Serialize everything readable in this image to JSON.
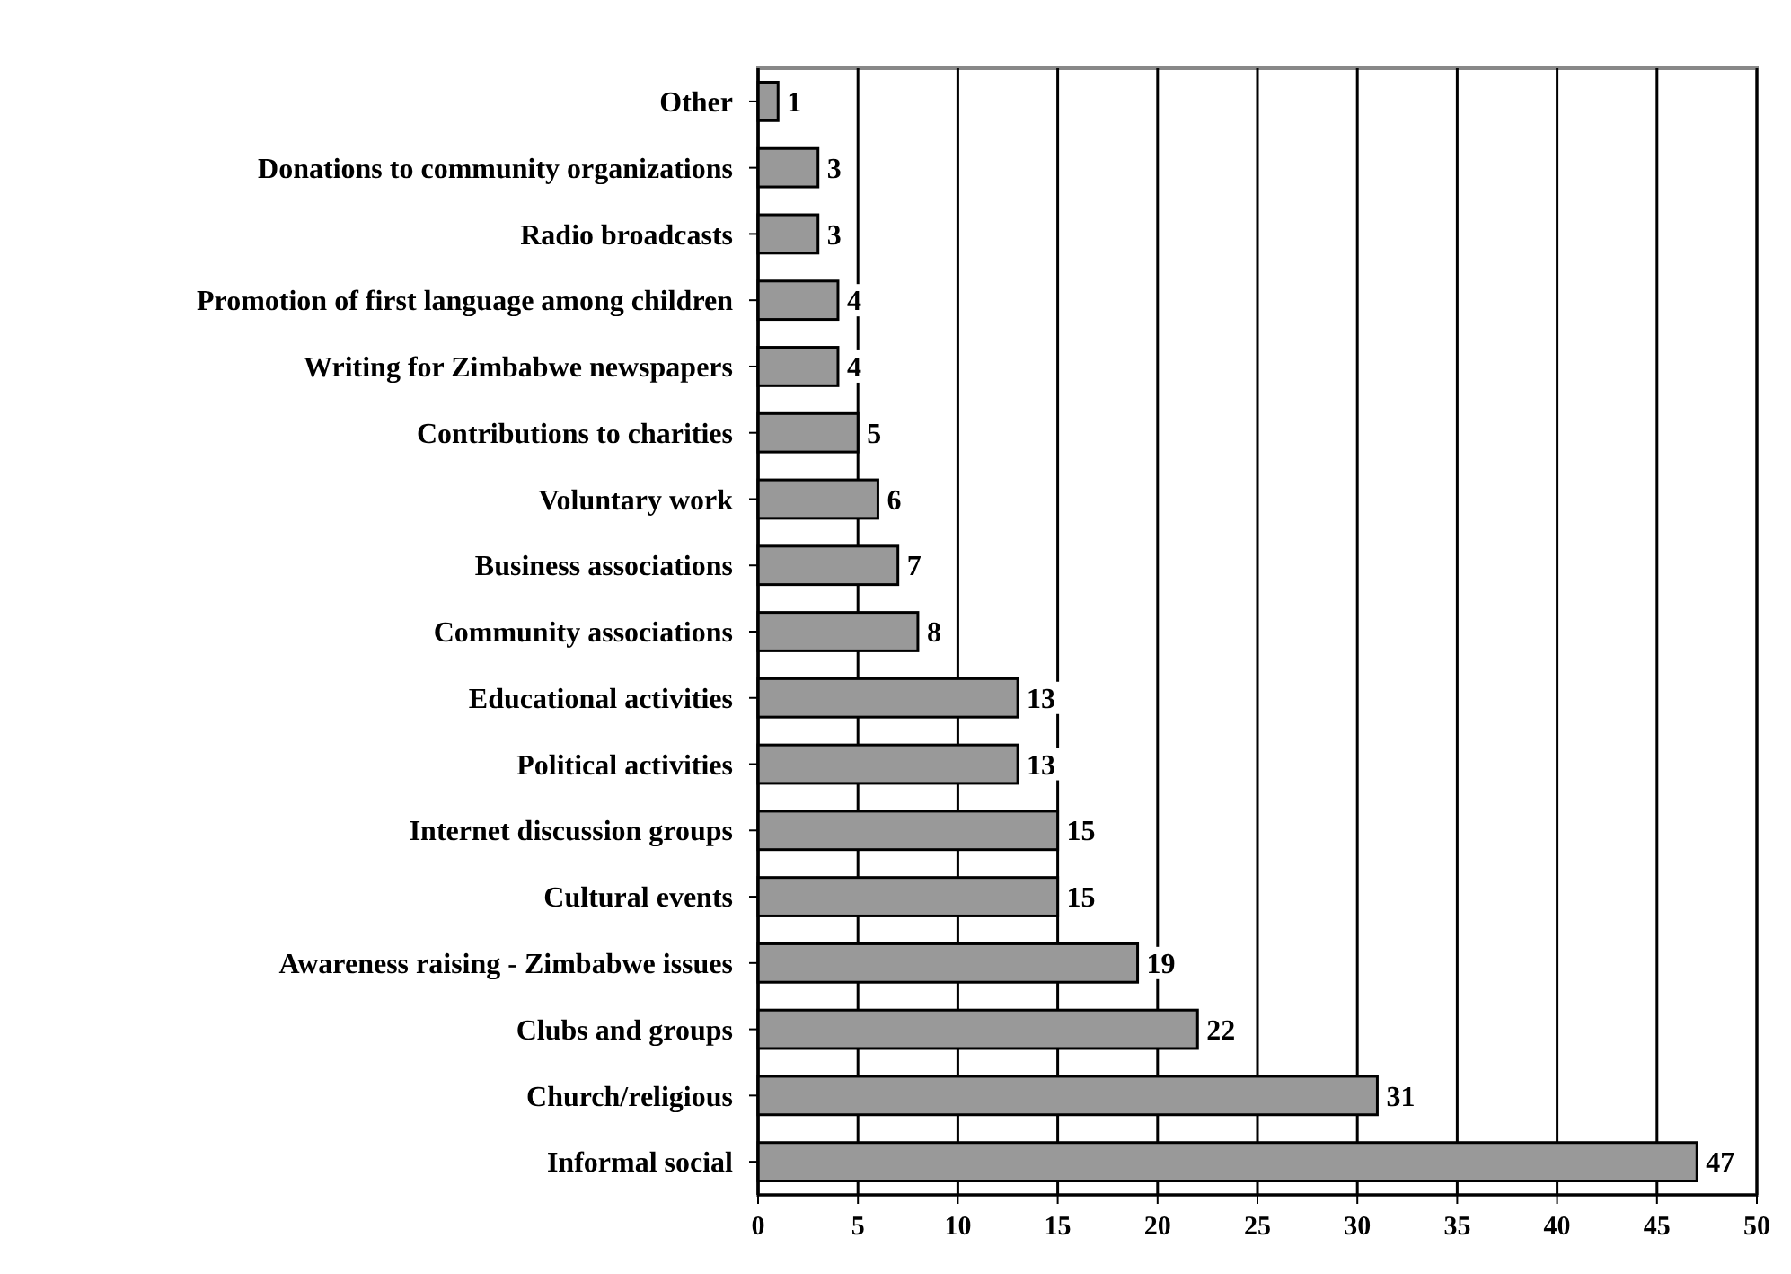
{
  "chart_data": {
    "type": "bar",
    "orientation": "horizontal",
    "categories": [
      "Other",
      "Donations to community organizations",
      "Radio broadcasts",
      "Promotion of first language among children",
      "Writing for Zimbabwe newspapers",
      "Contributions to charities",
      "Voluntary work",
      "Business associations",
      "Community associations",
      "Educational activities",
      "Political activities",
      "Internet discussion groups",
      "Cultural events",
      "Awareness raising - Zimbabwe issues",
      "Clubs and groups",
      "Church/religious",
      "Informal social"
    ],
    "values": [
      1,
      3,
      3,
      4,
      4,
      5,
      6,
      7,
      8,
      13,
      13,
      15,
      15,
      19,
      22,
      31,
      47
    ],
    "color": "#999999",
    "xlim": [
      0,
      50
    ],
    "xticks": [
      0,
      5,
      10,
      15,
      20,
      25,
      30,
      35,
      40,
      45,
      50
    ],
    "grid": "x",
    "data_labels": true
  }
}
